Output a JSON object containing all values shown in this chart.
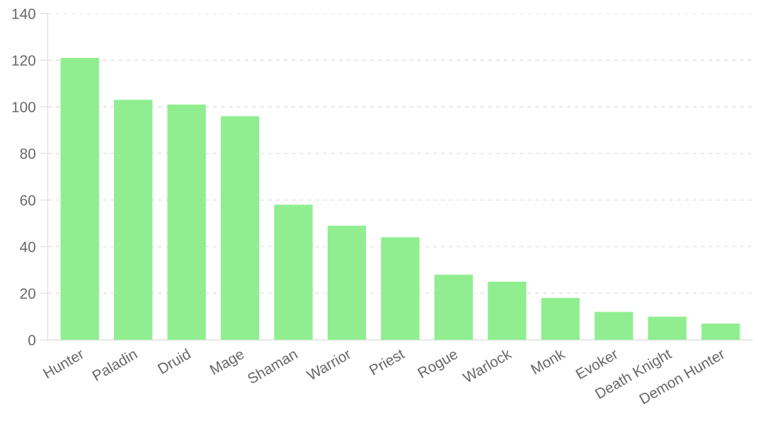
{
  "chart_data": {
    "type": "bar",
    "categories": [
      "Hunter",
      "Paladin",
      "Druid",
      "Mage",
      "Shaman",
      "Warrior",
      "Priest",
      "Rogue",
      "Warlock",
      "Monk",
      "Evoker",
      "Death Knight",
      "Demon Hunter"
    ],
    "values": [
      121,
      103,
      101,
      96,
      58,
      49,
      44,
      28,
      25,
      18,
      12,
      10,
      7
    ],
    "color": "#90ee90",
    "ylim": [
      0,
      140
    ],
    "yticks": [
      0,
      20,
      40,
      60,
      80,
      100,
      120,
      140
    ],
    "grid": "y"
  }
}
